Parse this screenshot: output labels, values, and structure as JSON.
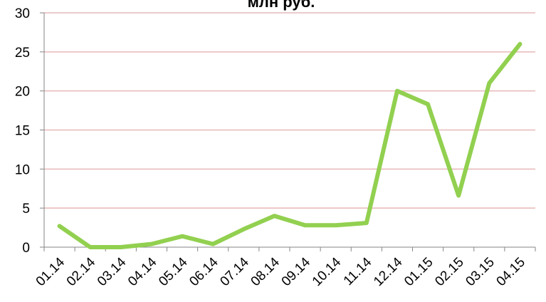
{
  "chart_data": {
    "type": "line",
    "title": "млн руб.",
    "categories": [
      "01.14",
      "02.14",
      "03.14",
      "04.14",
      "05.14",
      "06.14",
      "07.14",
      "08.14",
      "09.14",
      "10.14",
      "11.14",
      "12.14",
      "01.15",
      "02.15",
      "03.15",
      "04.15"
    ],
    "series": [
      {
        "name": "млн руб.",
        "color": "#92d050",
        "values": [
          2.7,
          0,
          0,
          0.4,
          1.4,
          0.4,
          2.3,
          4.0,
          2.8,
          2.8,
          3.1,
          20.0,
          18.3,
          6.6,
          21.0,
          26.0
        ]
      }
    ],
    "ylim": [
      0,
      30
    ],
    "yticks": [
      0,
      5,
      10,
      15,
      20,
      25,
      30
    ],
    "grid": true
  }
}
